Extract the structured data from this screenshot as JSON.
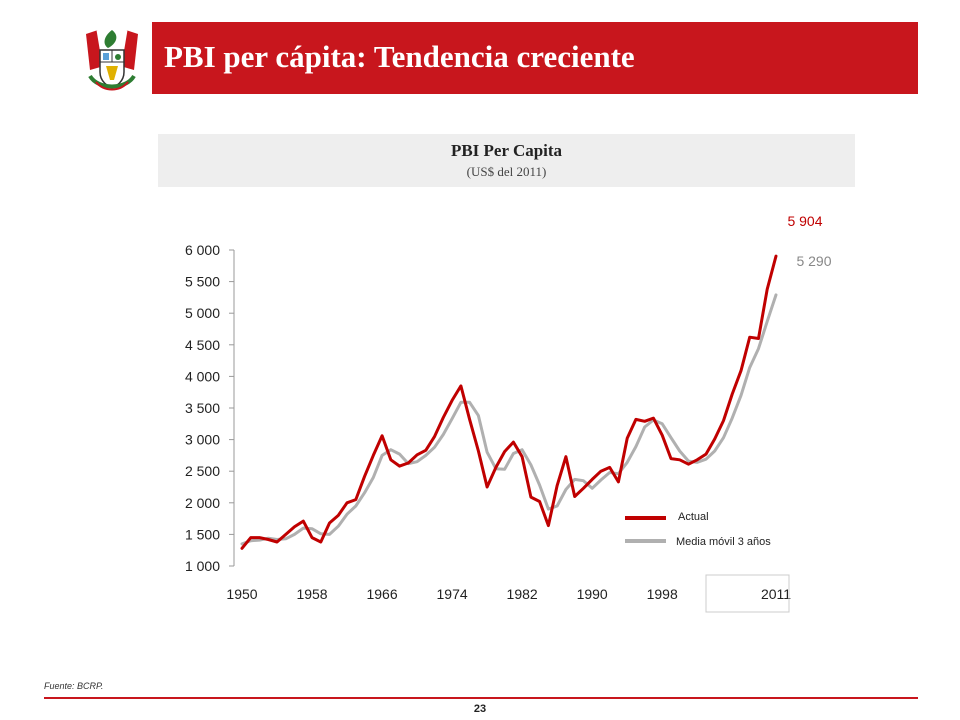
{
  "slide": {
    "title": "PBI per cápita: Tendencia creciente",
    "source": "Fuente: BCRP.",
    "page_number": "23",
    "brand_red": "#c8161d",
    "crest_icon": "peru-coat-of-arms-icon"
  },
  "chart_data": {
    "type": "line",
    "title": "PBI Per Capita",
    "subtitle": "(US$ del 2011)",
    "x": [
      1950,
      1951,
      1952,
      1953,
      1954,
      1955,
      1956,
      1957,
      1958,
      1959,
      1960,
      1961,
      1962,
      1963,
      1964,
      1965,
      1966,
      1967,
      1968,
      1969,
      1970,
      1971,
      1972,
      1973,
      1974,
      1975,
      1976,
      1977,
      1978,
      1979,
      1980,
      1981,
      1982,
      1983,
      1984,
      1985,
      1986,
      1987,
      1988,
      1989,
      1990,
      1991,
      1992,
      1993,
      1994,
      1995,
      1996,
      1997,
      1998,
      1999,
      2000,
      2001,
      2002,
      2003,
      2004,
      2005,
      2006,
      2007,
      2008,
      2009,
      2010,
      2011
    ],
    "series": [
      {
        "name": "Actual",
        "color": "#c00000",
        "values": [
          1280,
          1450,
          1450,
          1420,
          1380,
          1500,
          1620,
          1710,
          1450,
          1380,
          1680,
          1800,
          2000,
          2050,
          2420,
          2750,
          3060,
          2680,
          2580,
          2630,
          2760,
          2830,
          3050,
          3350,
          3620,
          3850,
          3320,
          2820,
          2250,
          2560,
          2810,
          2960,
          2730,
          2090,
          2020,
          1640,
          2270,
          2730,
          2100,
          2230,
          2370,
          2500,
          2560,
          2330,
          3020,
          3320,
          3290,
          3340,
          3070,
          2700,
          2680,
          2610,
          2680,
          2770,
          3010,
          3300,
          3720,
          4090,
          4620,
          4600,
          5380,
          5904
        ]
      },
      {
        "name": "Media móvil 3 años",
        "color": "#b0b0b0",
        "values": [
          1350,
          1400,
          1410,
          1440,
          1420,
          1430,
          1500,
          1600,
          1590,
          1510,
          1500,
          1630,
          1820,
          1950,
          2160,
          2400,
          2750,
          2840,
          2770,
          2620,
          2650,
          2750,
          2880,
          3080,
          3330,
          3590,
          3590,
          3380,
          2800,
          2540,
          2530,
          2780,
          2840,
          2600,
          2280,
          1900,
          1950,
          2210,
          2370,
          2350,
          2230,
          2360,
          2480,
          2460,
          2640,
          2890,
          3200,
          3310,
          3250,
          3030,
          2820,
          2660,
          2640,
          2690,
          2820,
          3030,
          3340,
          3700,
          4140,
          4440,
          4870,
          5290
        ]
      }
    ],
    "ylim": [
      1000,
      6000
    ],
    "y_ticks": [
      "1 000",
      "1 500",
      "2 000",
      "2 500",
      "3 000",
      "3 500",
      "4 000",
      "4 500",
      "5 000",
      "5 500",
      "6 000"
    ],
    "x_ticks": [
      "1950",
      "1958",
      "1966",
      "1974",
      "1982",
      "1990",
      "1998",
      "2011"
    ],
    "annotations": {
      "actual_last": "5 904",
      "avg_last": "5 290"
    },
    "legend": {
      "position": "bottom-right",
      "items": [
        "Actual",
        "Media móvil 3 años"
      ]
    },
    "grid": false
  }
}
